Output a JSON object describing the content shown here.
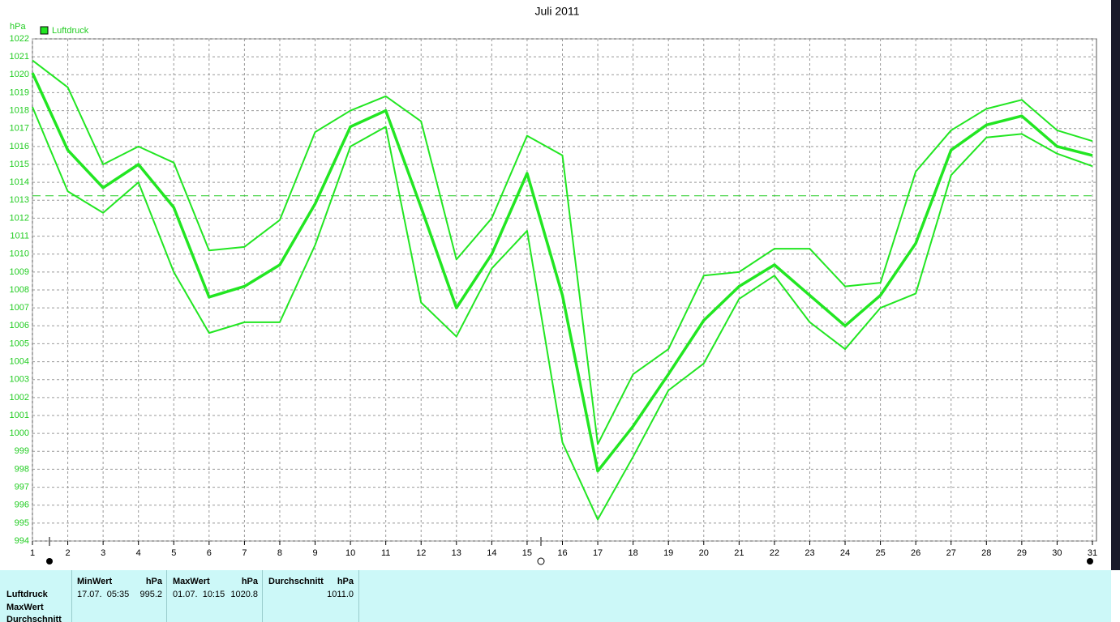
{
  "chart_data": {
    "type": "line",
    "title": "Juli 2011",
    "y_label": "hPa",
    "x": [
      1,
      2,
      3,
      4,
      5,
      6,
      7,
      8,
      9,
      10,
      11,
      12,
      13,
      14,
      15,
      16,
      17,
      18,
      19,
      20,
      21,
      22,
      23,
      24,
      25,
      26,
      27,
      28,
      29,
      30,
      31
    ],
    "xlim": [
      1,
      31
    ],
    "xticks": [
      1,
      2,
      3,
      4,
      5,
      6,
      7,
      8,
      9,
      10,
      11,
      12,
      13,
      14,
      15,
      16,
      17,
      18,
      19,
      20,
      21,
      22,
      23,
      24,
      25,
      26,
      27,
      28,
      29,
      30,
      31
    ],
    "ylim": [
      994,
      1022
    ],
    "yticks": [
      994,
      995,
      996,
      997,
      998,
      999,
      1000,
      1001,
      1002,
      1003,
      1004,
      1005,
      1006,
      1007,
      1008,
      1009,
      1010,
      1011,
      1012,
      1013,
      1014,
      1015,
      1016,
      1017,
      1018,
      1019,
      1020,
      1021,
      1022
    ],
    "grid": true,
    "reference_line": 1013.25,
    "series": [
      {
        "name": "Luftdruck",
        "color": "#22e622",
        "values": [
          1020.1,
          1015.8,
          1013.7,
          1015.0,
          1012.6,
          1007.6,
          1008.2,
          1009.4,
          1012.8,
          1017.1,
          1018.0,
          1012.6,
          1007.0,
          1010.0,
          1014.5,
          1007.7,
          997.9,
          1000.4,
          1003.3,
          1006.3,
          1008.2,
          1009.4,
          1007.7,
          1006.0,
          1007.7,
          1010.6,
          1015.8,
          1017.2,
          1017.7,
          1016.0,
          1015.5
        ],
        "max": [
          1020.8,
          1019.3,
          1015.0,
          1016.0,
          1015.1,
          1010.2,
          1010.4,
          1011.9,
          1016.8,
          1018.0,
          1018.8,
          1017.4,
          1009.7,
          1012.0,
          1016.6,
          1015.5,
          999.4,
          1003.3,
          1004.7,
          1008.8,
          1009.0,
          1010.3,
          1010.3,
          1008.2,
          1008.4,
          1014.6,
          1016.9,
          1018.1,
          1018.6,
          1016.9,
          1016.3
        ],
        "min": [
          1018.2,
          1013.5,
          1012.3,
          1014.0,
          1009.0,
          1005.6,
          1006.2,
          1006.2,
          1010.5,
          1016.0,
          1017.1,
          1007.3,
          1005.4,
          1009.2,
          1011.3,
          999.5,
          995.2,
          998.7,
          1002.4,
          1003.9,
          1007.5,
          1008.8,
          1006.2,
          1004.7,
          1007.0,
          1007.8,
          1014.4,
          1016.5,
          1016.7,
          1015.6,
          1014.9
        ]
      }
    ]
  },
  "table": {
    "row_labels": [
      "Luftdruck",
      "MaxWert",
      "Durchschnitt"
    ],
    "columns": [
      {
        "title": "MinWert",
        "unit": "hPa",
        "time": "17.07.  05:35",
        "value": "995.2"
      },
      {
        "title": "MaxWert",
        "unit": "hPa",
        "time": "01.07.  10:15",
        "value": "1020.8"
      },
      {
        "title": "Durchschnitt",
        "unit": "hPa",
        "value": "1011.0"
      }
    ]
  }
}
